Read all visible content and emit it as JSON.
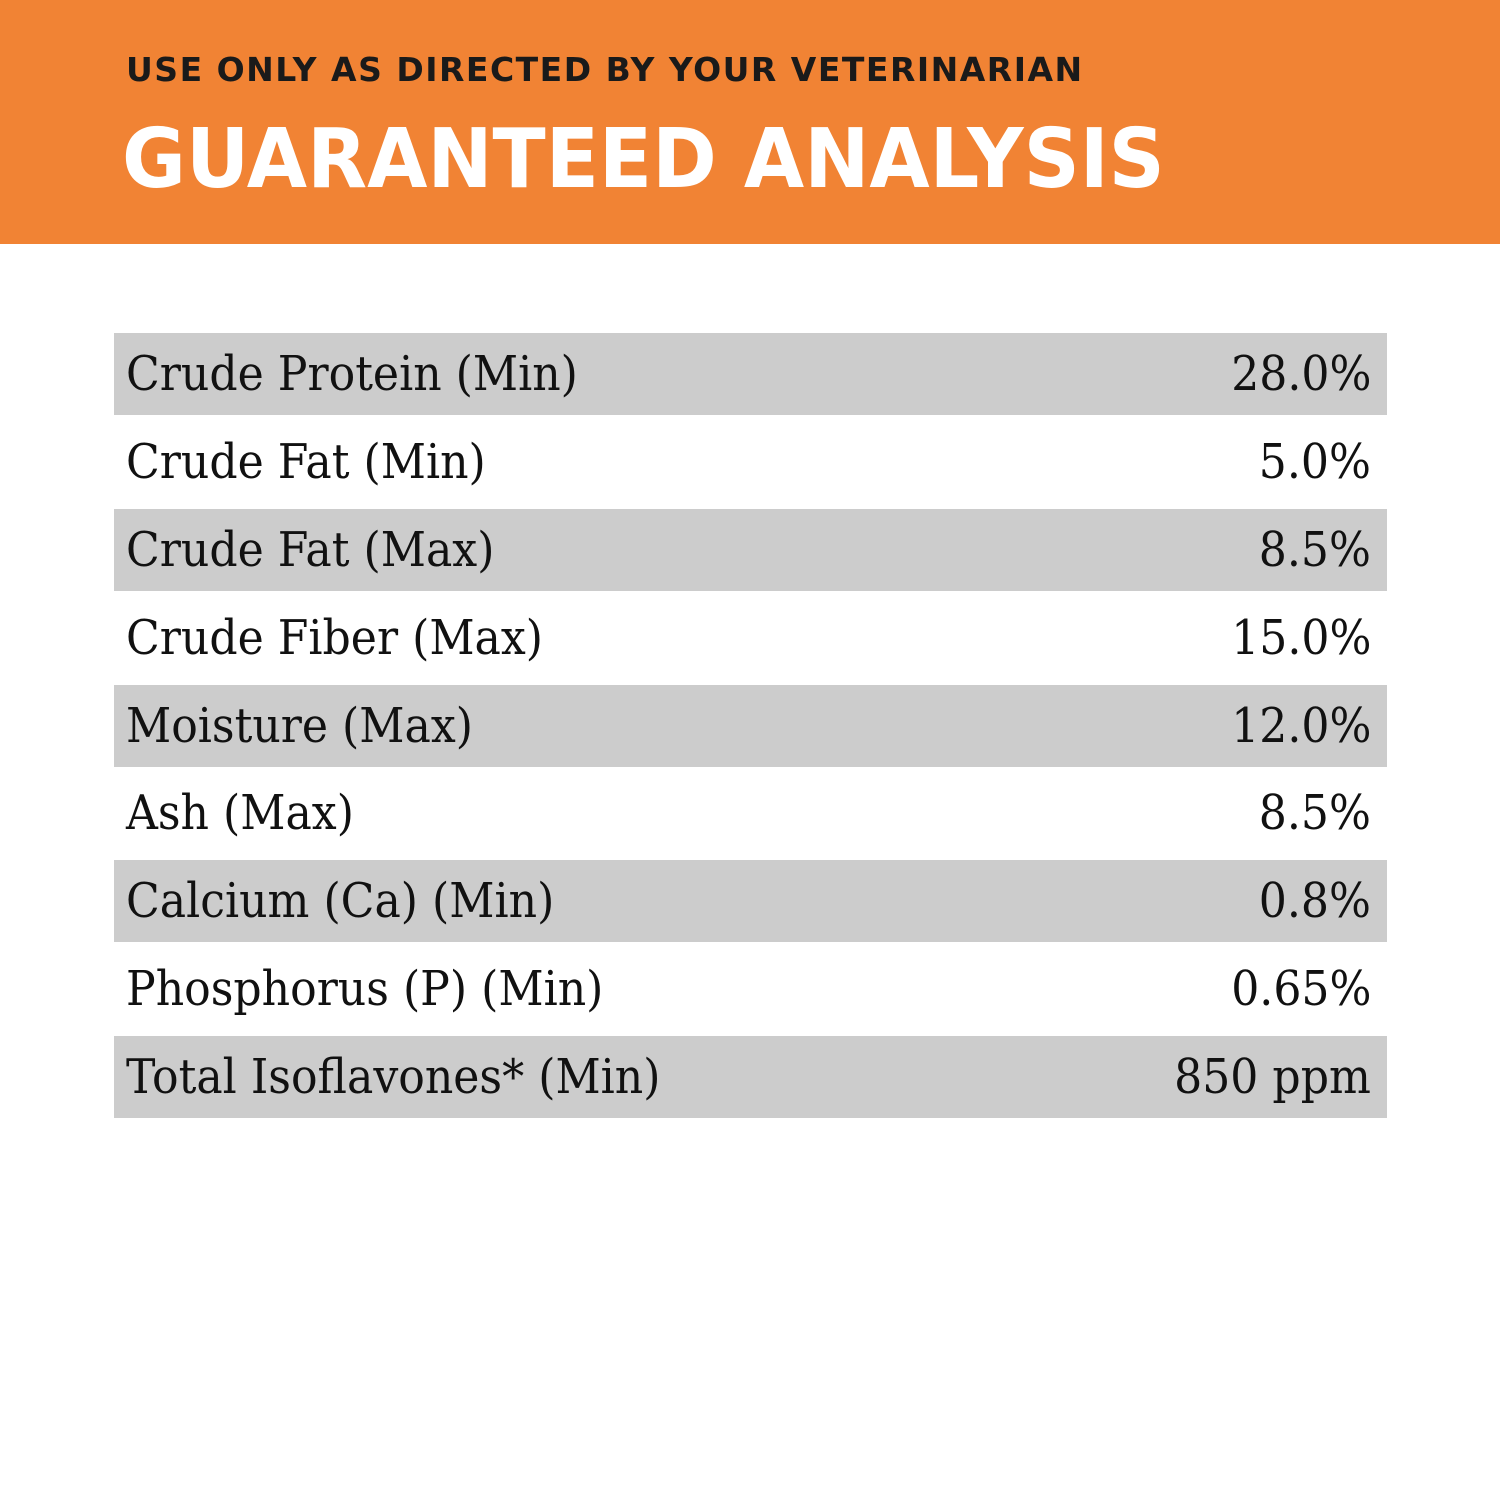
{
  "header": {
    "subtitle": "USE ONLY AS DIRECTED BY YOUR VETERINARIAN",
    "title": "GUARANTEED ANALYSIS",
    "background_color": "#f18334"
  },
  "analysis": {
    "rows": [
      {
        "label": "Crude Protein (Min)",
        "value": "28.0%"
      },
      {
        "label": "Crude Fat (Min)",
        "value": "5.0%"
      },
      {
        "label": "Crude Fat (Max)",
        "value": "8.5%"
      },
      {
        "label": "Crude Fiber (Max)",
        "value": "15.0%"
      },
      {
        "label": "Moisture (Max)",
        "value": "12.0%"
      },
      {
        "label": "Ash (Max)",
        "value": "8.5%"
      },
      {
        "label": "Calcium (Ca) (Min)",
        "value": "0.8%"
      },
      {
        "label": "Phosphorus (P) (Min)",
        "value": "0.65%"
      },
      {
        "label": "Total Isoflavones* (Min)",
        "value": "850 ppm"
      }
    ],
    "shaded_row_color": "#cccccc"
  }
}
